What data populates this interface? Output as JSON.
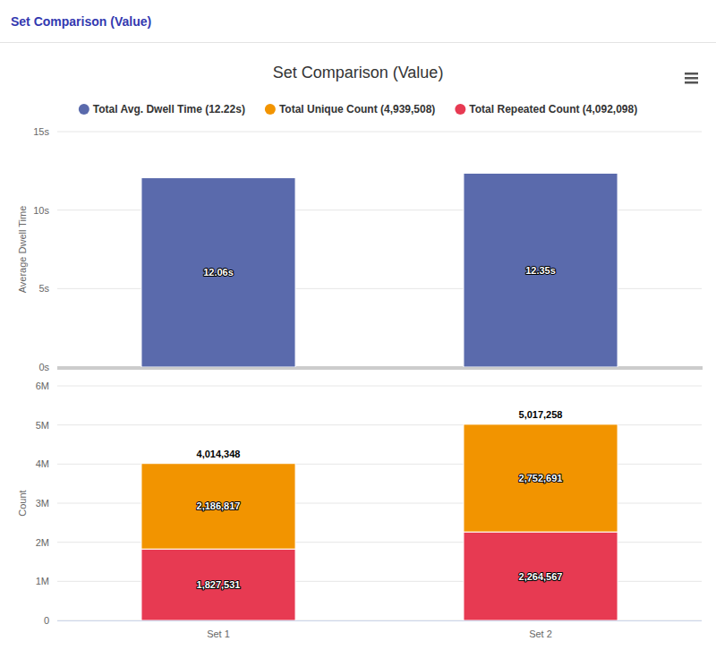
{
  "header": {
    "title": "Set Comparison (Value)"
  },
  "chart_data": [
    {
      "type": "bar",
      "title": "Set Comparison (Value)",
      "y_label": "Average Dwell Time",
      "categories": [
        null,
        null
      ],
      "series": [
        {
          "name": "Total Avg. Dwell Time (12.22s)",
          "color": "#5a6aac",
          "values": [
            12.06,
            12.35
          ],
          "value_labels": [
            "12.06s",
            "12.35s"
          ]
        }
      ],
      "ylim": [
        0,
        15
      ],
      "yticks": [
        {
          "value": 0,
          "label": "0s"
        },
        {
          "value": 5,
          "label": "5s"
        },
        {
          "value": 10,
          "label": "10s"
        },
        {
          "value": 15,
          "label": "15s"
        }
      ],
      "grid": true,
      "data_labels": true,
      "legend": "top"
    },
    {
      "type": "bar",
      "y_label": "Count",
      "categories": [
        "Set 1",
        "Set 2"
      ],
      "series": [
        {
          "name": "Total Unique Count (4,939,508)",
          "color": "#f29400",
          "values": [
            2186817,
            2752691
          ],
          "value_labels": [
            "2,186,817",
            "2,752,691"
          ]
        },
        {
          "name": "Total Repeated Count (4,092,098)",
          "color": "#e73a52",
          "values": [
            1827531,
            2264567
          ],
          "value_labels": [
            "1,827,531",
            "2,264,567"
          ]
        }
      ],
      "annotations": [
        "4,014,348",
        "5,017,258"
      ],
      "ylim": [
        0,
        6000000
      ],
      "yticks": [
        0,
        {
          "value": 1000000,
          "label": "1M"
        },
        {
          "value": 2000000,
          "label": "2M"
        },
        {
          "value": 3000000,
          "label": "3M"
        },
        {
          "value": 4000000,
          "label": "4M"
        },
        {
          "value": 5000000,
          "label": "5M"
        },
        {
          "value": 6000000,
          "label": "6M"
        }
      ],
      "grid": true,
      "stacked": true,
      "data_labels": true,
      "legend": "top"
    }
  ]
}
